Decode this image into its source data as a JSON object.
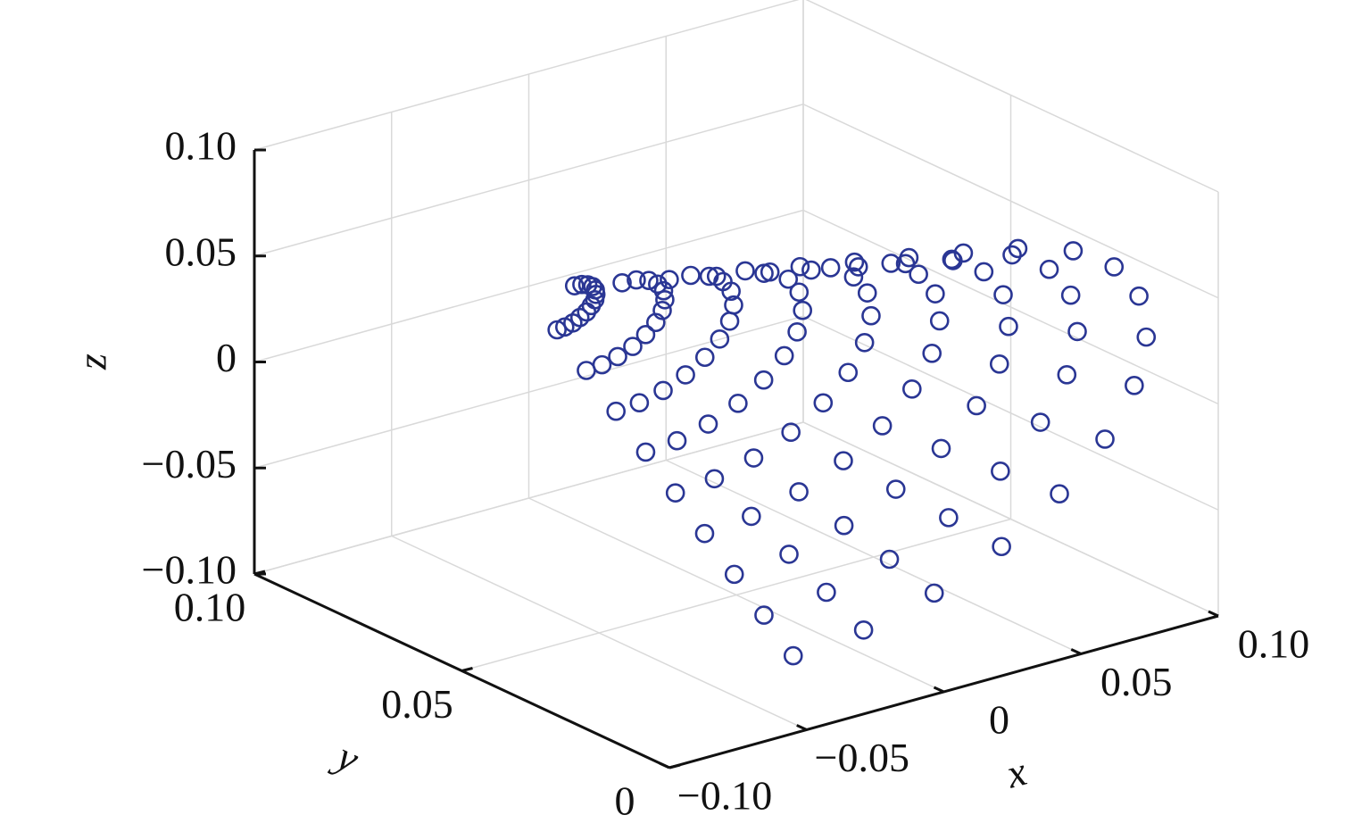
{
  "chart_data": {
    "type": "scatter3d",
    "xlabel": "x",
    "ylabel": "y",
    "zlabel": "z",
    "color": "#2a3694",
    "grid": true,
    "xlim": [
      -0.1,
      0.1
    ],
    "ylim": [
      0,
      0.1
    ],
    "zlim": [
      -0.1,
      0.1
    ],
    "xticks": [
      {
        "value": -0.1,
        "label": "−0.10"
      },
      {
        "value": -0.05,
        "label": "−0.05"
      },
      0,
      0.05,
      {
        "value": 0.1,
        "label": "0.10"
      }
    ],
    "yticks": [
      0,
      0.05,
      {
        "value": 0.1,
        "label": "0.10"
      }
    ],
    "zticks": [
      {
        "value": -0.1,
        "label": "−0.10"
      },
      {
        "value": -0.05,
        "label": "−0.05"
      },
      0,
      0.05,
      {
        "value": 0.1,
        "label": "0.10"
      }
    ],
    "x": [
      -0.0479,
      -0.046,
      -0.0446,
      -0.0437,
      -0.0435,
      -0.0439,
      -0.0449,
      -0.0465,
      -0.0485,
      -0.0508,
      -0.0532,
      -0.0557,
      -0.0579,
      -0.0348,
      -0.031,
      -0.0281,
      -0.0264,
      -0.0259,
      -0.0268,
      -0.0288,
      -0.0319,
      -0.0359,
      -0.0406,
      -0.0455,
      -0.0503,
      -0.0548,
      -0.0217,
      -0.016,
      -0.0117,
      -0.0091,
      -0.0084,
      -0.0096,
      -0.0127,
      -0.0174,
      -0.0234,
      -0.0303,
      -0.0377,
      -0.045,
      -0.0517,
      -0.0086,
      -0.001,
      0.0047,
      0.0082,
      0.0091,
      0.0075,
      0.0034,
      -0.0028,
      -0.0109,
      -0.0201,
      -0.0299,
      -0.0396,
      -0.0486,
      0.0045,
      0.014,
      0.0212,
      0.0255,
      0.0267,
      0.0246,
      0.0195,
      0.0117,
      0.0017,
      -0.0099,
      -0.0221,
      -0.0343,
      -0.0455,
      0.0176,
      0.029,
      0.0376,
      0.0428,
      0.0442,
      0.0417,
      0.0356,
      0.0262,
      0.0142,
      0.0003,
      -0.0144,
      -0.029,
      -0.0424,
      0.0307,
      0.044,
      0.054,
      0.0601,
      0.0617,
      0.0588,
      0.0517,
      0.0408,
      0.0267,
      0.0105,
      -0.0066,
      -0.0236,
      -0.0393,
      0.0438,
      0.059,
      0.0704,
      0.0774,
      0.0792,
      0.076,
      0.0678,
      0.0553,
      0.0392,
      0.0208,
      0.0012,
      -0.0183,
      -0.0362,
      0.0569,
      0.074,
      0.0869,
      0.0947,
      0.0968,
      0.0931,
      0.0839,
      0.0699,
      0.0518,
      0.031,
      0.0089,
      -0.0129,
      -0.0331
    ],
    "y": [
      0.0573,
      0.0568,
      0.0563,
      0.0557,
      0.0552,
      0.0548,
      0.0544,
      0.0542,
      0.054,
      0.0541,
      0.0542,
      0.0545,
      0.0549,
      0.0545,
      0.0536,
      0.0525,
      0.0515,
      0.0504,
      0.0495,
      0.0488,
      0.0483,
      0.0481,
      0.0481,
      0.0485,
      0.0491,
      0.0499,
      0.0518,
      0.0504,
      0.0488,
      0.0472,
      0.0457,
      0.0443,
      0.0432,
      0.0425,
      0.0421,
      0.0422,
      0.0427,
      0.0436,
      0.0448,
      0.0491,
      0.0472,
      0.045,
      0.0429,
      0.0409,
      0.039,
      0.0376,
      0.0366,
      0.0362,
      0.0363,
      0.037,
      0.0381,
      0.0397,
      0.0463,
      0.0439,
      0.0413,
      0.0386,
      0.0361,
      0.0338,
      0.032,
      0.0308,
      0.0302,
      0.0303,
      0.0312,
      0.0326,
      0.0346,
      0.0436,
      0.0407,
      0.0376,
      0.0344,
      0.0313,
      0.0286,
      0.0264,
      0.025,
      0.0242,
      0.0244,
      0.0254,
      0.0272,
      0.0296,
      0.0409,
      0.0375,
      0.0338,
      0.0301,
      0.0265,
      0.0233,
      0.0208,
      0.0191,
      0.0183,
      0.0185,
      0.0197,
      0.0217,
      0.0245,
      0.0382,
      0.0343,
      0.0301,
      0.0258,
      0.0218,
      0.0181,
      0.0152,
      0.0133,
      0.0123,
      0.0126,
      0.0139,
      0.0162,
      0.0194,
      0.0354,
      0.0311,
      0.0263,
      0.0216,
      0.017,
      0.0128,
      0.0096,
      0.0074,
      0.0064,
      0.0066,
      0.0082,
      0.0108,
      0.0144
    ],
    "z": [
      0.0563,
      0.0567,
      0.0565,
      0.0559,
      0.0547,
      0.0531,
      0.0513,
      0.0493,
      0.0472,
      0.0453,
      0.0435,
      0.0422,
      0.0413,
      0.0556,
      0.0564,
      0.0561,
      0.0547,
      0.0524,
      0.0493,
      0.0456,
      0.0415,
      0.0374,
      0.0335,
      0.0301,
      0.0274,
      0.0256,
      0.0549,
      0.0561,
      0.0556,
      0.0536,
      0.0502,
      0.0454,
      0.0399,
      0.0338,
      0.0277,
      0.0218,
      0.0166,
      0.0126,
      0.0099,
      0.0542,
      0.0558,
      0.0552,
      0.0525,
      0.0479,
      0.0416,
      0.0342,
      0.0261,
      0.0179,
      0.0101,
      0.0032,
      -0.0022,
      -0.0058,
      0.0535,
      0.0554,
      0.0547,
      0.0513,
      0.0456,
      0.0377,
      0.0285,
      0.0183,
      0.0081,
      -0.0017,
      -0.0103,
      -0.017,
      -0.0215,
      0.0528,
      0.0551,
      0.0543,
      0.0502,
      0.0433,
      0.0339,
      0.0228,
      0.0106,
      -0.0017,
      -0.0134,
      -0.0237,
      -0.0317,
      -0.0372,
      0.0521,
      0.0548,
      0.0538,
      0.0491,
      0.041,
      0.03,
      0.0171,
      0.0029,
      -0.0115,
      -0.0251,
      -0.0372,
      -0.0465,
      -0.0529,
      0.0514,
      0.0545,
      0.0534,
      0.048,
      0.0388,
      0.0262,
      0.0114,
      -0.0048,
      -0.0212,
      -0.0368,
      -0.0506,
      -0.0613,
      -0.0686,
      0.0507,
      0.0542,
      0.0529,
      0.0468,
      0.0365,
      0.0223,
      0.0057,
      -0.0126,
      -0.031,
      -0.0486,
      -0.0641,
      -0.0761,
      -0.0843
    ]
  }
}
